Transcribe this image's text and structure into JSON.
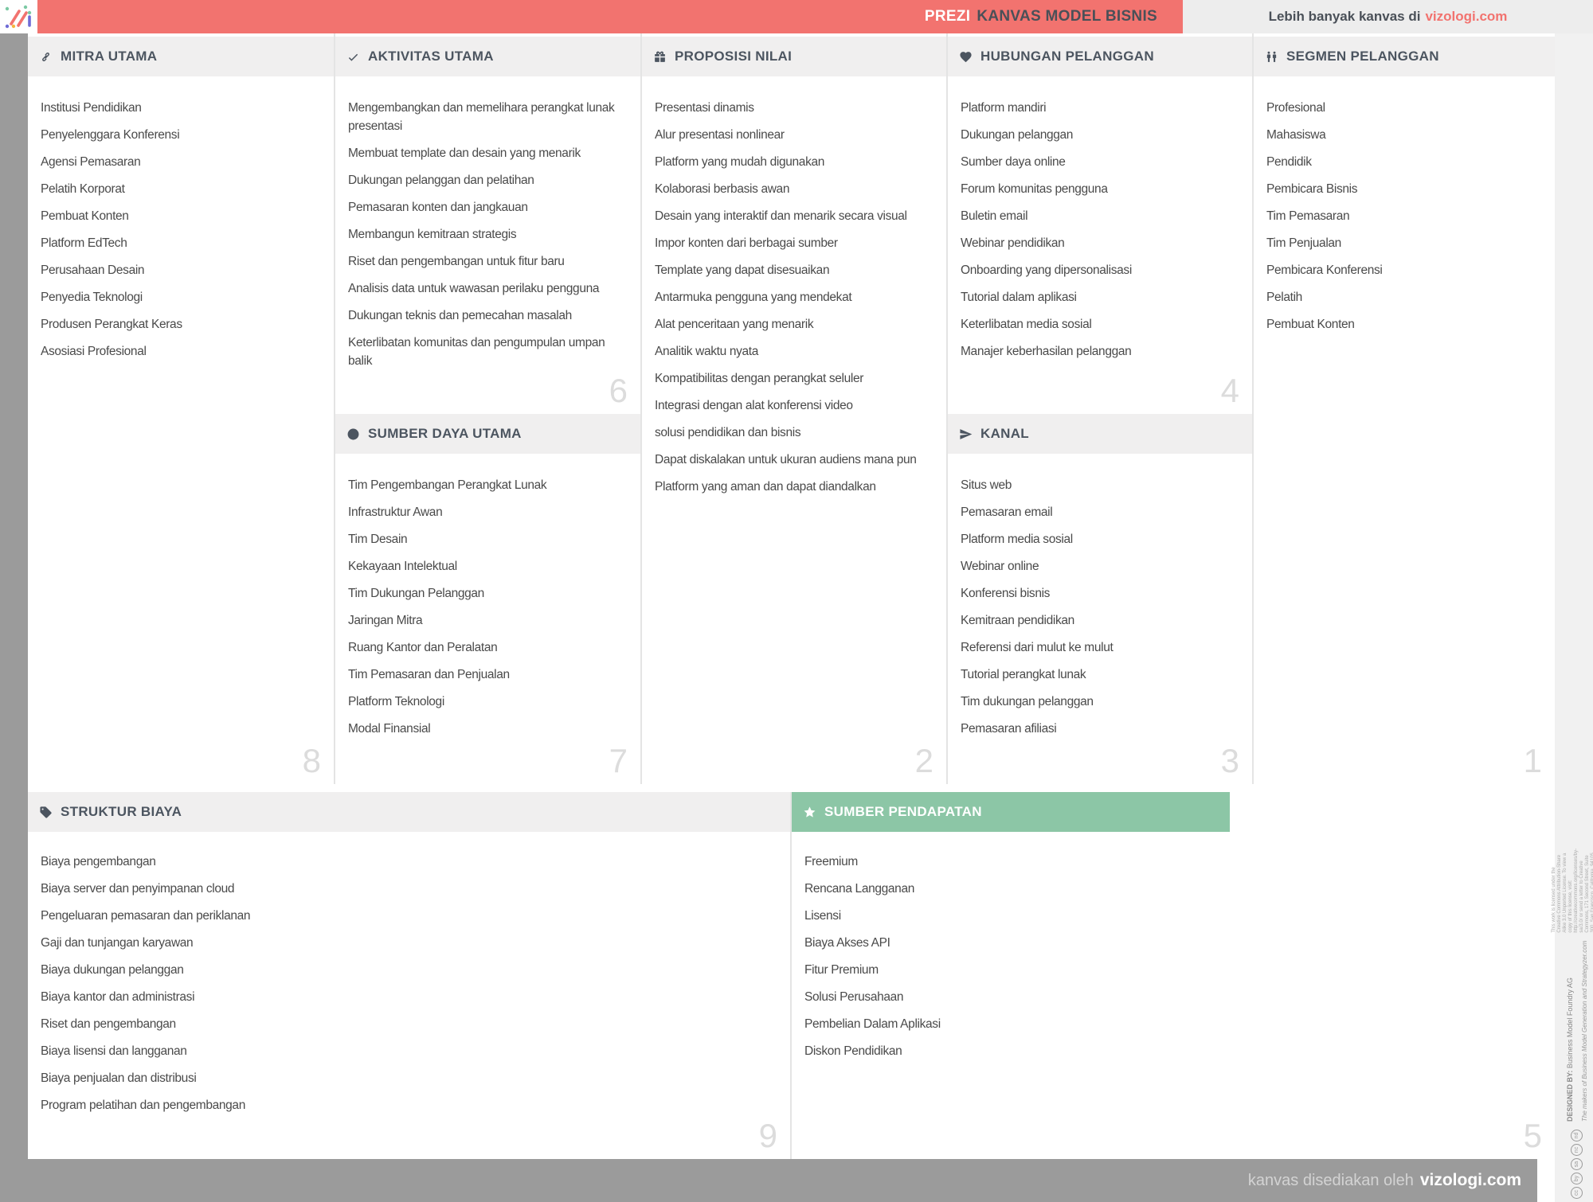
{
  "header": {
    "brand": "PREZI",
    "title": "KANVAS MODEL BISNIS",
    "more_prefix": "Lebih banyak kanvas di",
    "more_link": "vizologi.com"
  },
  "footer": {
    "prefix": "kanvas disediakan oleh",
    "link": "vizologi.com"
  },
  "colors": {
    "accent_salmon": "#F2736F",
    "accent_green": "#8CC6A6",
    "header_text": "#4C5560",
    "bar_gray": "#9B9B9B",
    "number_gray": "#DCDCDC"
  },
  "sections": {
    "mitra_utama": {
      "title": "MITRA UTAMA",
      "icon": "link-icon",
      "number": "8",
      "items": [
        "Institusi Pendidikan",
        "Penyelenggara Konferensi",
        "Agensi Pemasaran",
        "Pelatih Korporat",
        "Pembuat Konten",
        "Platform EdTech",
        "Perusahaan Desain",
        "Penyedia Teknologi",
        "Produsen Perangkat Keras",
        "Asosiasi Profesional"
      ]
    },
    "aktivitas_utama": {
      "title": "AKTIVITAS UTAMA",
      "icon": "check-icon",
      "number": "6",
      "items": [
        "Mengembangkan dan memelihara perangkat lunak presentasi",
        "Membuat template dan desain yang menarik",
        "Dukungan pelanggan dan pelatihan",
        "Pemasaran konten dan jangkauan",
        "Membangun kemitraan strategis",
        "Riset dan pengembangan untuk fitur baru",
        "Analisis data untuk wawasan perilaku pengguna",
        "Dukungan teknis dan pemecahan masalah",
        "Keterlibatan komunitas dan pengumpulan umpan balik"
      ]
    },
    "sumber_daya_utama": {
      "title": "SUMBER DAYA UTAMA",
      "icon": "globe-icon",
      "number": "7",
      "items": [
        "Tim Pengembangan Perangkat Lunak",
        "Infrastruktur Awan",
        "Tim Desain",
        "Kekayaan Intelektual",
        "Tim Dukungan Pelanggan",
        "Jaringan Mitra",
        "Ruang Kantor dan Peralatan",
        "Tim Pemasaran dan Penjualan",
        "Platform Teknologi",
        "Modal Finansial"
      ]
    },
    "proposisi_nilai": {
      "title": "PROPOSISI NILAI",
      "icon": "gift-icon",
      "number": "2",
      "items": [
        "Presentasi dinamis",
        "Alur presentasi nonlinear",
        "Platform yang mudah digunakan",
        "Kolaborasi berbasis awan",
        "Desain yang interaktif dan menarik secara visual",
        "Impor konten dari berbagai sumber",
        "Template yang dapat disesuaikan",
        "Antarmuka pengguna yang mendekat",
        "Alat penceritaan yang menarik",
        "Analitik waktu nyata",
        "Kompatibilitas dengan perangkat seluler",
        "Integrasi dengan alat konferensi video",
        "solusi pendidikan dan bisnis",
        "Dapat diskalakan untuk ukuran audiens mana pun",
        "Platform yang aman dan dapat diandalkan"
      ]
    },
    "hubungan_pelanggan": {
      "title": "HUBUNGAN PELANGGAN",
      "icon": "heart-icon",
      "number": "4",
      "items": [
        "Platform mandiri",
        "Dukungan pelanggan",
        "Sumber daya online",
        "Forum komunitas pengguna",
        "Buletin email",
        "Webinar pendidikan",
        "Onboarding yang dipersonalisasi",
        "Tutorial dalam aplikasi",
        "Keterlibatan media sosial",
        "Manajer keberhasilan pelanggan"
      ]
    },
    "kanal": {
      "title": "KANAL",
      "icon": "paper-plane-icon",
      "number": "3",
      "items": [
        "Situs web",
        "Pemasaran email",
        "Platform media sosial",
        "Webinar online",
        "Konferensi bisnis",
        "Kemitraan pendidikan",
        "Referensi dari mulut ke mulut",
        "Tutorial perangkat lunak",
        "Tim dukungan pelanggan",
        "Pemasaran afiliasi"
      ]
    },
    "segmen_pelanggan": {
      "title": "SEGMEN PELANGGAN",
      "icon": "people-icon",
      "number": "1",
      "items": [
        "Profesional",
        "Mahasiswa",
        "Pendidik",
        "Pembicara Bisnis",
        "Tim Pemasaran",
        "Tim Penjualan",
        "Pembicara Konferensi",
        "Pelatih",
        "Pembuat Konten"
      ]
    },
    "struktur_biaya": {
      "title": "STRUKTUR BIAYA",
      "icon": "tag-icon",
      "number": "9",
      "items": [
        "Biaya pengembangan",
        "Biaya server dan penyimpanan cloud",
        "Pengeluaran pemasaran dan periklanan",
        "Gaji dan tunjangan karyawan",
        "Biaya dukungan pelanggan",
        "Biaya kantor dan administrasi",
        "Riset dan pengembangan",
        "Biaya lisensi dan langganan",
        "Biaya penjualan dan distribusi",
        "Program pelatihan dan pengembangan"
      ]
    },
    "sumber_pendapatan": {
      "title": "SUMBER PENDAPATAN",
      "icon": "star-icon",
      "number": "5",
      "items": [
        "Freemium",
        "Rencana Langganan",
        "Lisensi",
        "Biaya Akses API",
        "Fitur Premium",
        "Solusi Perusahaan",
        "Pembelian Dalam Aplikasi",
        "Diskon Pendidikan"
      ]
    }
  },
  "license": {
    "designed_by_label": "DESIGNED BY:",
    "designed_by": "Business Model Foundry AG",
    "makers": "The makers of Business Model Generation and Strategyzer.com",
    "legal": "This work is licensed under the Creative Commons Attribution-Share Alike 3.0 Unported License. To view a copy of this license, visit: http://creativecommons.org/licenses/by-sa/3.0/ or send a letter to Creative Commons, 171 Second Street, Suite 300, San Francisco, California, 94105, USA.",
    "cc_icons": [
      "cc",
      "by",
      "sa",
      "nc",
      "nd"
    ]
  }
}
